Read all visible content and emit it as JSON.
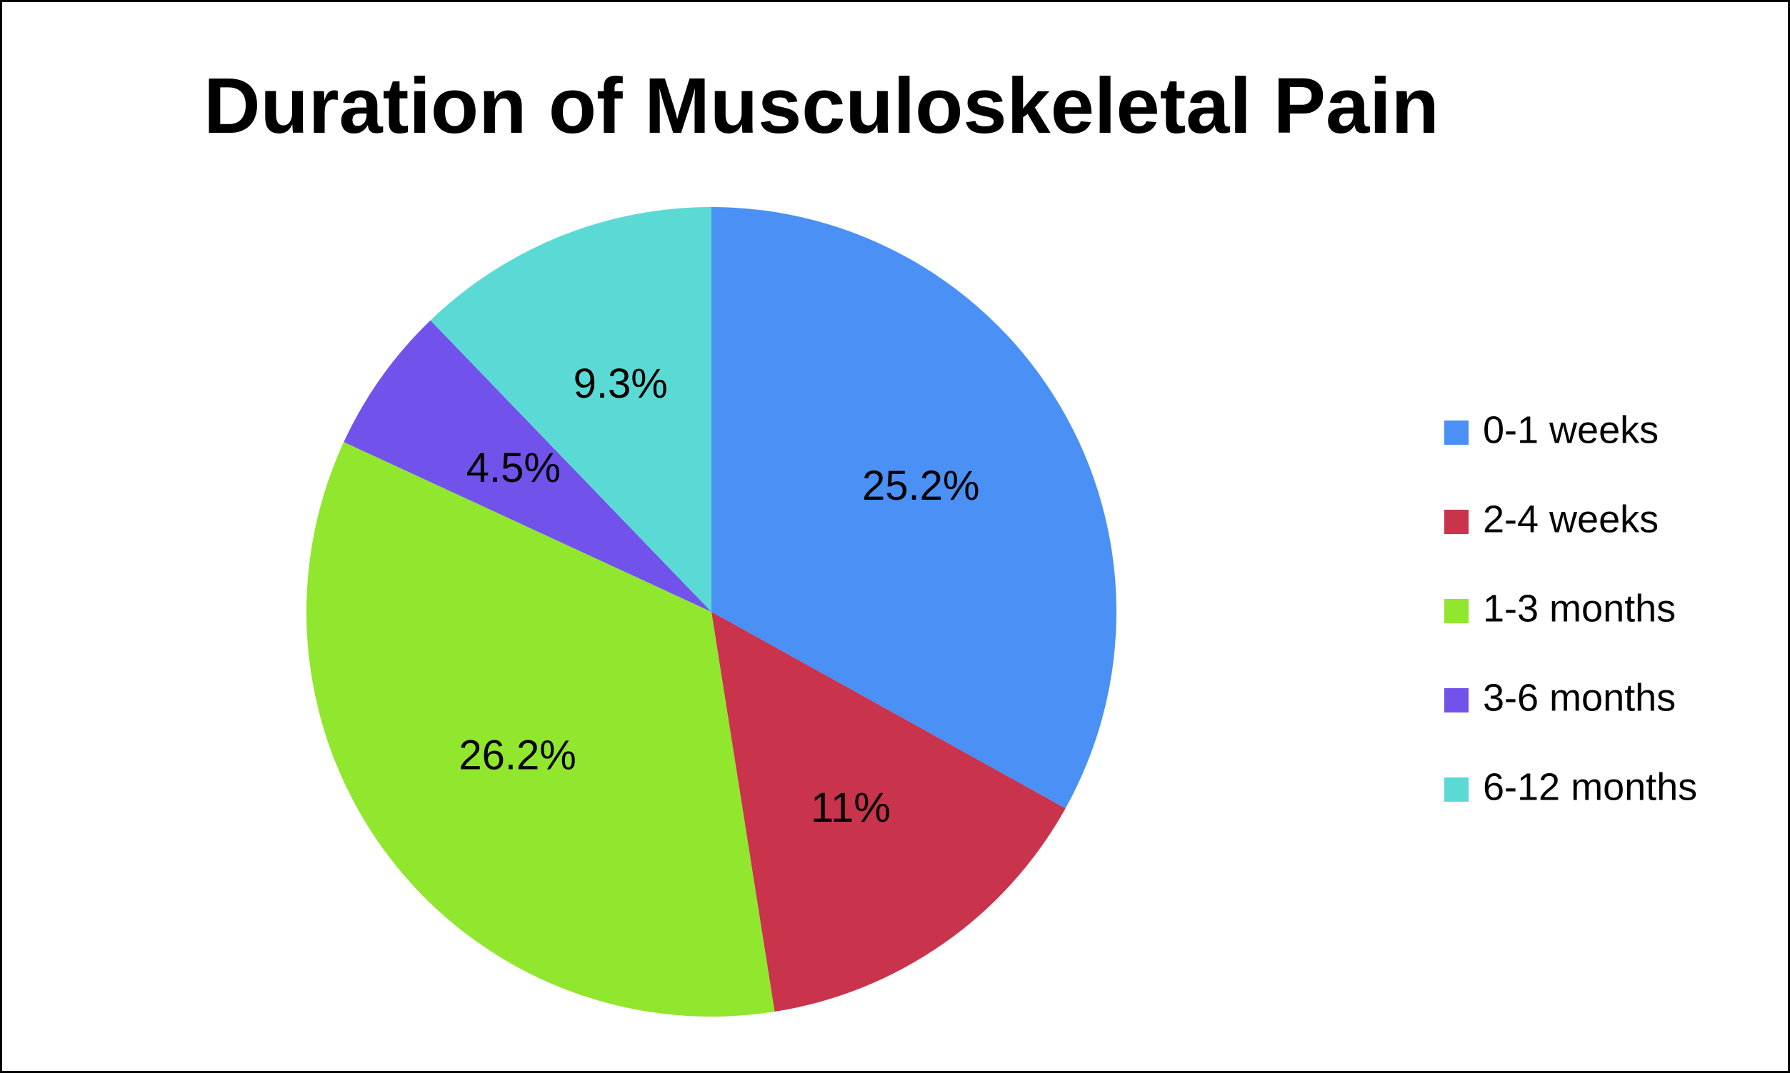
{
  "chart_data": {
    "type": "pie",
    "title": "Duration of Musculoskeletal Pain",
    "categories": [
      "0-1 weeks",
      "2-4 weeks",
      "1-3 months",
      "3-6 months",
      "6-12 months"
    ],
    "values": [
      25.2,
      11,
      26.2,
      4.5,
      9.3
    ],
    "value_labels": [
      "25.2%",
      "11%",
      "26.2%",
      "4.5%",
      "9.3%"
    ],
    "colors": [
      "#4a90f5",
      "#c9334b",
      "#91e62e",
      "#7152ea",
      "#5bdad5"
    ],
    "legend": "right"
  }
}
